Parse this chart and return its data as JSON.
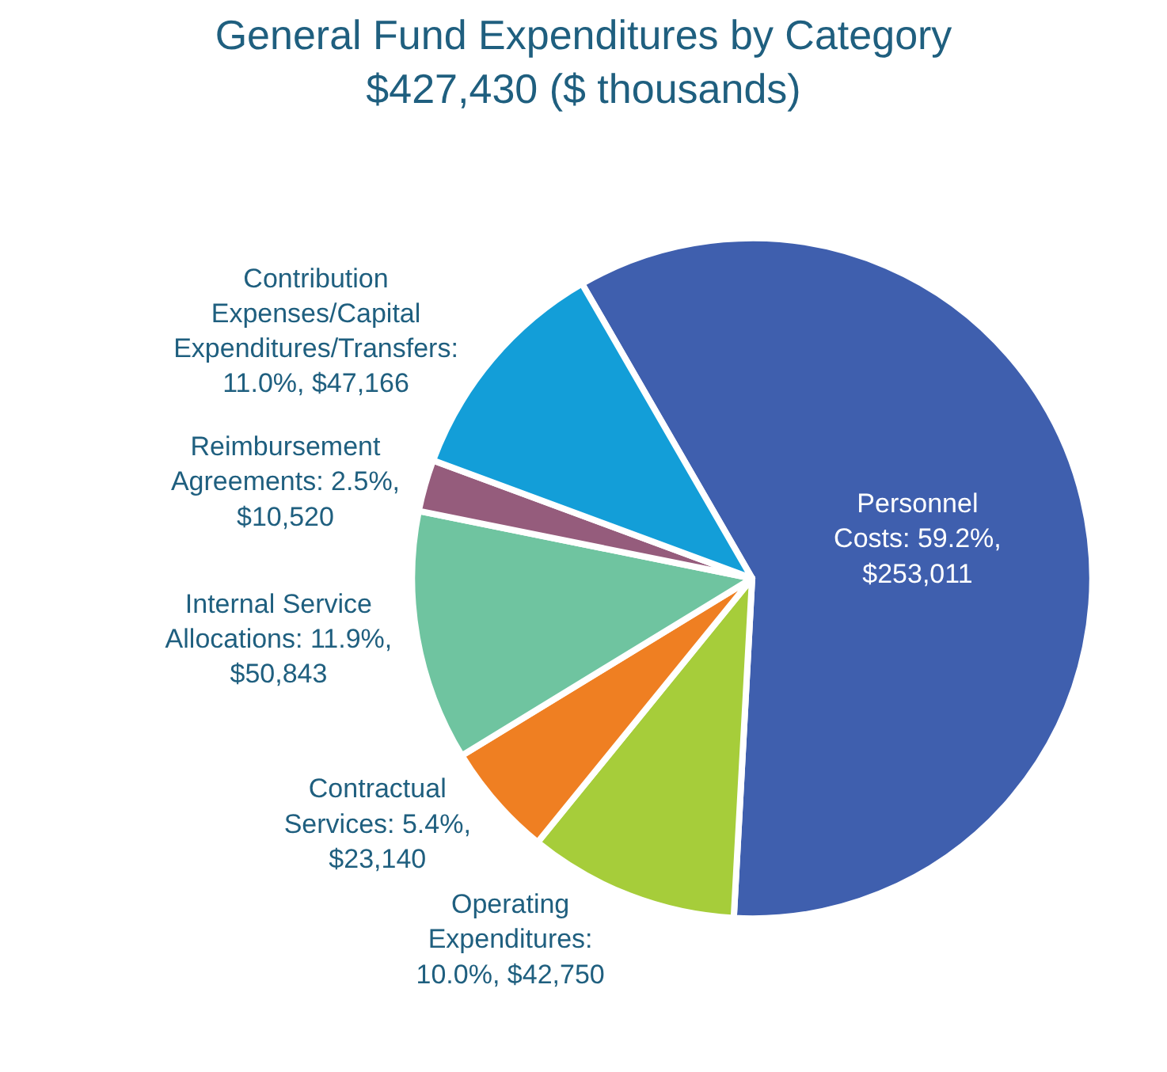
{
  "chart_data": {
    "type": "pie",
    "title": "General Fund Expenditures by Category",
    "subtitle": "$427,430 ($ thousands)",
    "categories": [
      "Personnel Costs",
      "Operating Expenditures",
      "Contractual Services",
      "Internal Service Allocations",
      "Reimbursement Agreements",
      "Contribution Expenses/Capital Expenditures/Transfers"
    ],
    "values": [
      253011,
      42750,
      23140,
      50843,
      10520,
      47166
    ],
    "colors": [
      "#3f5fae",
      "#a6cd3a",
      "#ef7f22",
      "#6fc4a0",
      "#955c7c",
      "#139ed8"
    ],
    "value_labels": [
      ": 59.2%, $253,011",
      ": 10.0%, $42,750",
      ": 5.4%, $23,140",
      ": 11.9%, $50,843",
      ": 2.5%, $10,520",
      ": 11.0%, $47,166"
    ],
    "legend": false
  }
}
